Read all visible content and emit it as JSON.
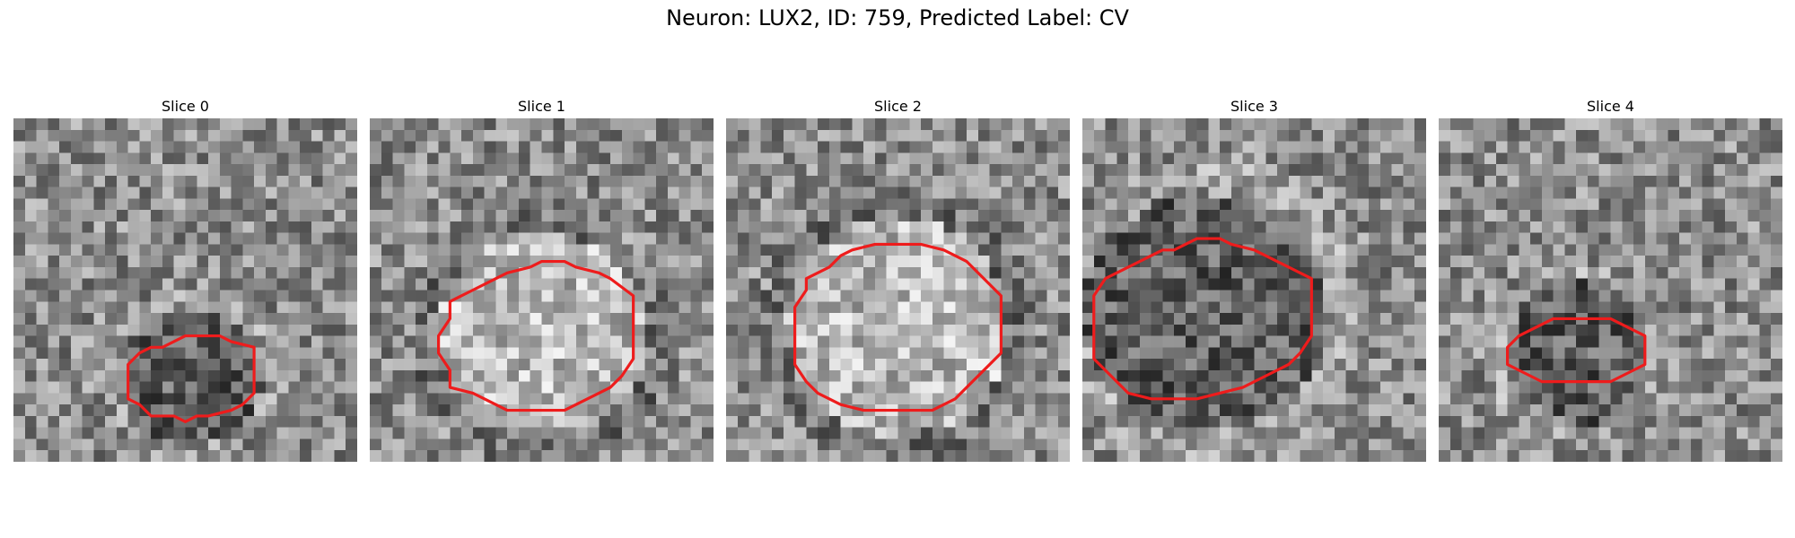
{
  "figure": {
    "title": "Neuron: LUX2, ID: 759, Predicted Label: CV"
  },
  "contour_color": "#ee1c1c",
  "slices": [
    {
      "title": "Slice 0",
      "contour": [
        [
          14,
          39
        ],
        [
          15,
          38
        ],
        [
          17,
          38
        ],
        [
          18,
          38
        ],
        [
          19,
          39
        ],
        [
          21,
          40
        ],
        [
          21,
          43
        ],
        [
          21,
          45
        ],
        [
          21,
          48
        ],
        [
          20,
          50
        ],
        [
          19,
          51
        ],
        [
          17,
          52
        ],
        [
          16,
          52
        ],
        [
          15,
          53
        ],
        [
          14,
          52
        ],
        [
          12,
          52
        ],
        [
          11,
          50
        ],
        [
          10,
          49
        ],
        [
          10,
          46
        ],
        [
          10,
          43
        ],
        [
          11,
          41
        ],
        [
          12,
          40
        ],
        [
          13,
          40
        ]
      ]
    },
    {
      "title": "Slice 1",
      "contour": [
        [
          14,
          26
        ],
        [
          15,
          25
        ],
        [
          17,
          25
        ],
        [
          18,
          26
        ],
        [
          20,
          27
        ],
        [
          21,
          28
        ],
        [
          23,
          31
        ],
        [
          23,
          34
        ],
        [
          23,
          37
        ],
        [
          23,
          40
        ],
        [
          23,
          42
        ],
        [
          22,
          45
        ],
        [
          21,
          47
        ],
        [
          19,
          49
        ],
        [
          17,
          51
        ],
        [
          16,
          51
        ],
        [
          14,
          51
        ],
        [
          12,
          51
        ],
        [
          11,
          50
        ],
        [
          9,
          48
        ],
        [
          7,
          47
        ],
        [
          7,
          44
        ],
        [
          6,
          41
        ],
        [
          6,
          38
        ],
        [
          7,
          35
        ],
        [
          7,
          32
        ],
        [
          9,
          30
        ],
        [
          11,
          28
        ],
        [
          12,
          27
        ]
      ]
    },
    {
      "title": "Slice 2",
      "contour": [
        [
          15,
          22
        ],
        [
          17,
          22
        ],
        [
          19,
          23
        ],
        [
          20,
          24
        ],
        [
          21,
          25
        ],
        [
          22,
          27
        ],
        [
          23,
          29
        ],
        [
          24,
          31
        ],
        [
          24,
          34
        ],
        [
          24,
          38
        ],
        [
          24,
          41
        ],
        [
          23,
          43
        ],
        [
          22,
          45
        ],
        [
          21,
          47
        ],
        [
          20,
          49
        ],
        [
          18,
          51
        ],
        [
          16,
          51
        ],
        [
          14,
          51
        ],
        [
          12,
          51
        ],
        [
          10,
          50
        ],
        [
          9,
          49
        ],
        [
          8,
          48
        ],
        [
          7,
          46
        ],
        [
          6,
          43
        ],
        [
          6,
          40
        ],
        [
          6,
          36
        ],
        [
          6,
          33
        ],
        [
          7,
          30
        ],
        [
          7,
          28
        ],
        [
          9,
          26
        ],
        [
          10,
          24
        ],
        [
          11,
          23
        ],
        [
          13,
          22
        ]
      ]
    },
    {
      "title": "Slice 3",
      "contour": [
        [
          9,
          22
        ],
        [
          10,
          21
        ],
        [
          12,
          21
        ],
        [
          13,
          22
        ],
        [
          15,
          23
        ],
        [
          16,
          24
        ],
        [
          17,
          25
        ],
        [
          18,
          26
        ],
        [
          19,
          27
        ],
        [
          20,
          28
        ],
        [
          20,
          31
        ],
        [
          20,
          34
        ],
        [
          20,
          38
        ],
        [
          19,
          41
        ],
        [
          18,
          43
        ],
        [
          16,
          45
        ],
        [
          14,
          47
        ],
        [
          12,
          48
        ],
        [
          10,
          49
        ],
        [
          8,
          49
        ],
        [
          6,
          49
        ],
        [
          4,
          48
        ],
        [
          3,
          46
        ],
        [
          2,
          44
        ],
        [
          1,
          42
        ],
        [
          1,
          38
        ],
        [
          1,
          34
        ],
        [
          1,
          31
        ],
        [
          2,
          28
        ],
        [
          4,
          26
        ],
        [
          6,
          24
        ],
        [
          7,
          23
        ],
        [
          8,
          23
        ]
      ]
    },
    {
      "title": "Slice 4",
      "contour": [
        [
          12,
          35
        ],
        [
          15,
          35
        ],
        [
          16,
          36
        ],
        [
          17,
          37
        ],
        [
          18,
          38
        ],
        [
          18,
          40
        ],
        [
          18,
          42
        ],
        [
          18,
          43
        ],
        [
          17,
          44
        ],
        [
          16,
          45
        ],
        [
          15,
          46
        ],
        [
          13,
          46
        ],
        [
          11,
          46
        ],
        [
          9,
          46
        ],
        [
          8,
          45
        ],
        [
          7,
          44
        ],
        [
          6,
          43
        ],
        [
          6,
          42
        ],
        [
          6,
          40
        ],
        [
          7,
          38
        ],
        [
          8,
          37
        ],
        [
          9,
          36
        ],
        [
          10,
          35
        ]
      ]
    }
  ]
}
